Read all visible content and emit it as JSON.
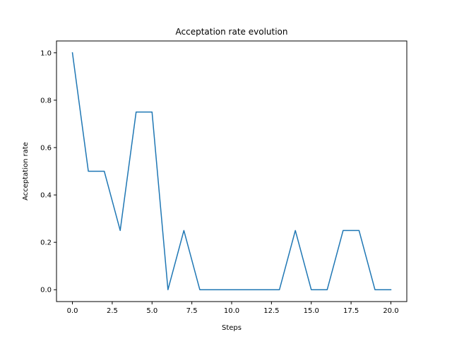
{
  "chart_data": {
    "type": "line",
    "title": "Acceptation rate evolution",
    "xlabel": "Steps",
    "ylabel": "Acceptation rate",
    "xlim": [
      -1,
      21
    ],
    "ylim": [
      -0.05,
      1.05
    ],
    "xticks": [
      0,
      2.5,
      5,
      7.5,
      10,
      12.5,
      15,
      17.5,
      20
    ],
    "xtick_labels": [
      "0.0",
      "2.5",
      "5.0",
      "7.5",
      "10.0",
      "12.5",
      "15.0",
      "17.5",
      "20.0"
    ],
    "yticks": [
      0,
      0.2,
      0.4,
      0.6,
      0.8,
      1.0
    ],
    "ytick_labels": [
      "0.0",
      "0.2",
      "0.4",
      "0.6",
      "0.8",
      "1.0"
    ],
    "grid": false,
    "series": [
      {
        "color": "#1f77b4",
        "x": [
          0,
          1,
          2,
          3,
          4,
          5,
          6,
          7,
          8,
          9,
          10,
          11,
          12,
          13,
          14,
          15,
          16,
          17,
          18,
          19,
          20
        ],
        "y": [
          1.0,
          0.5,
          0.5,
          0.25,
          0.75,
          0.75,
          0.0,
          0.25,
          0.0,
          0.0,
          0.0,
          0.0,
          0.0,
          0.0,
          0.25,
          0.0,
          0.0,
          0.25,
          0.25,
          0.0,
          0.0
        ]
      }
    ]
  }
}
